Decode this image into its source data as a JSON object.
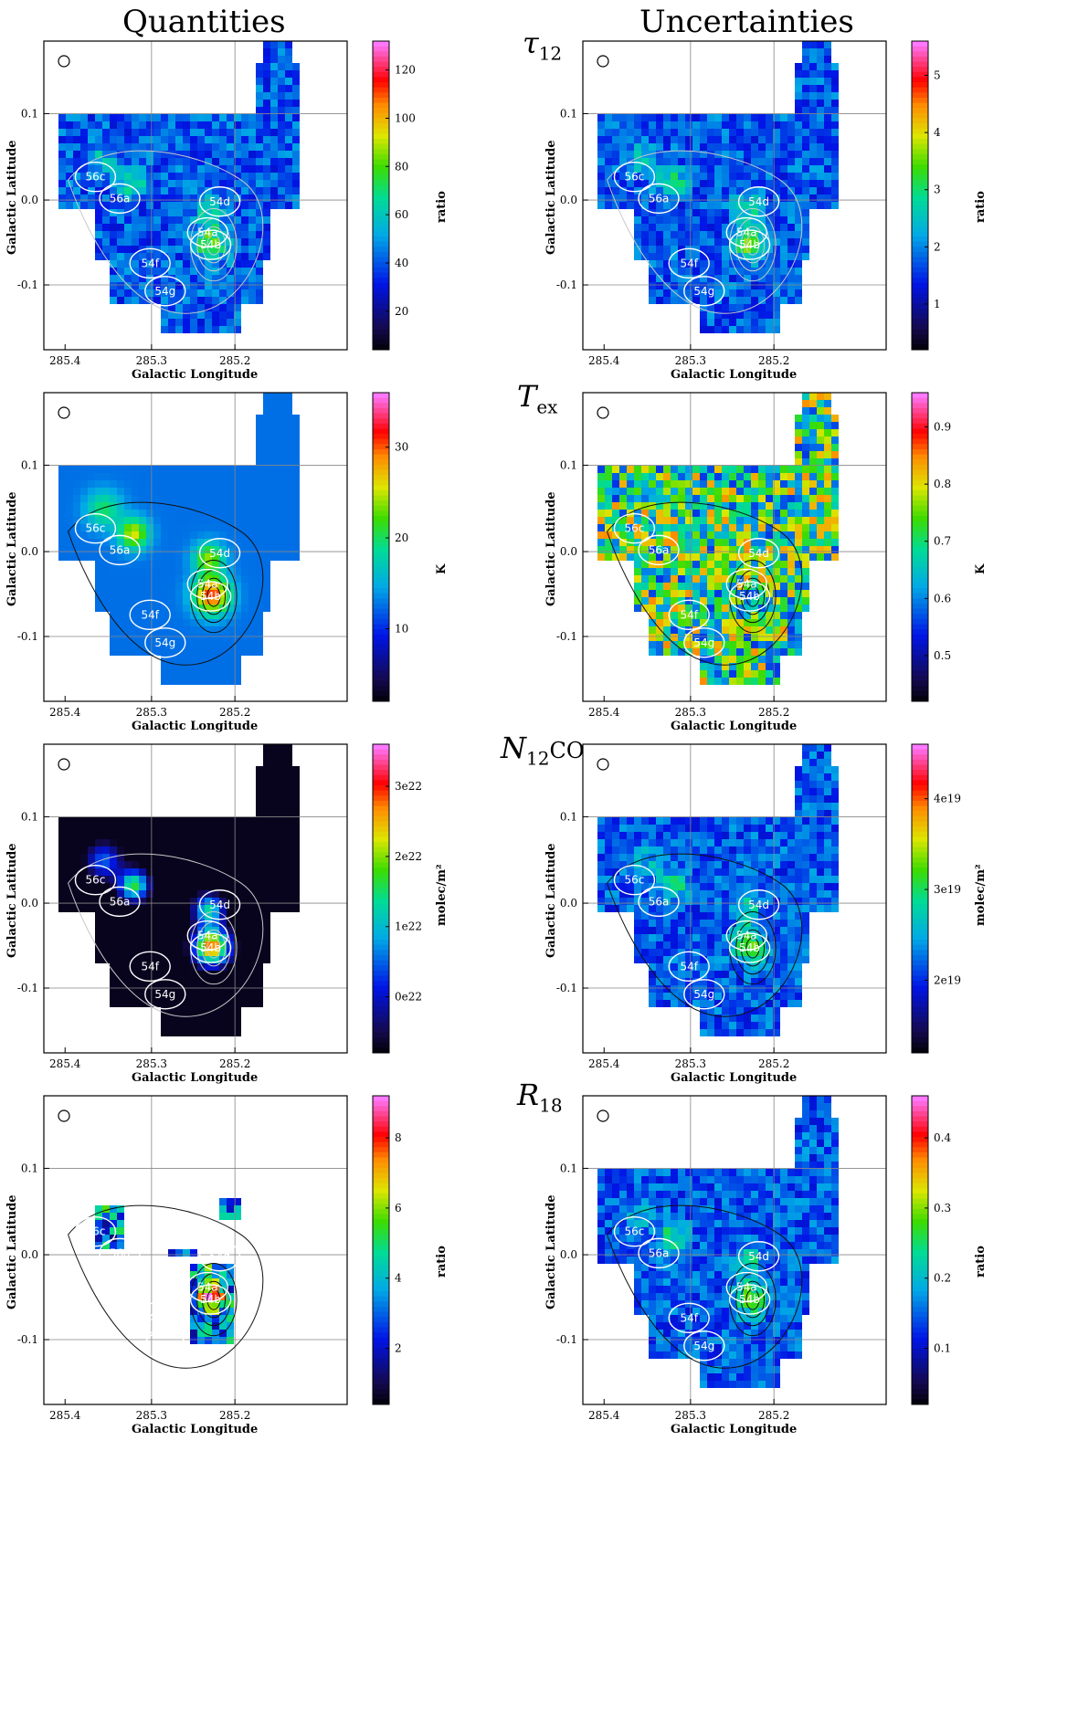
{
  "headers": {
    "left": "Quantities",
    "right": "Uncertainties"
  },
  "rows": [
    {
      "label_main": "τ",
      "label_sub": "12",
      "label_sup": ""
    },
    {
      "label_main": "T",
      "label_sub": "ex",
      "label_sup": ""
    },
    {
      "label_main": "N",
      "label_sub": "",
      "label_sup": "12",
      "label_tail": "CO"
    },
    {
      "label_main": "R",
      "label_sub": "18",
      "label_sup": ""
    }
  ],
  "axes": {
    "xlabel": "Galactic Longitude",
    "ylabel": "Galactic Latitude",
    "xticks": [
      "285.4",
      "285.3",
      "285.2"
    ],
    "yticks": [
      "0.1",
      "0.0",
      "-0.1"
    ]
  },
  "sources": [
    "56c",
    "56a",
    "54d",
    "54a",
    "54b",
    "54f",
    "54g"
  ],
  "panels": [
    {
      "id": "tau-quantity",
      "colorbar_title": "ratio",
      "cb_ticks": [
        "120",
        "100",
        "80",
        "60",
        "40",
        "20"
      ],
      "contour": "#c8c8c8",
      "style": "blue"
    },
    {
      "id": "tau-uncertainty",
      "colorbar_title": "ratio",
      "cb_ticks": [
        "5",
        "4",
        "3",
        "2",
        "1"
      ],
      "contour": "#c8c8c8",
      "style": "blue"
    },
    {
      "id": "tex-quantity",
      "colorbar_title": "K",
      "cb_ticks": [
        "30",
        "20",
        "10"
      ],
      "contour": "#111111",
      "style": "smooth"
    },
    {
      "id": "tex-uncertainty",
      "colorbar_title": "K",
      "cb_ticks": [
        "0.9",
        "0.8",
        "0.7",
        "0.6",
        "0.5"
      ],
      "contour": "#111111",
      "style": "noisy"
    },
    {
      "id": "nco-quantity",
      "colorbar_title": "molec/m²",
      "cb_ticks": [
        "3e22",
        "2e22",
        "1e22",
        "0e22"
      ],
      "contour": "#c8c8c8",
      "style": "dark"
    },
    {
      "id": "nco-uncertainty",
      "colorbar_title": "molec/m²",
      "cb_ticks": [
        "4e19",
        "3e19",
        "2e19"
      ],
      "contour": "#111111",
      "style": "blue"
    },
    {
      "id": "r18-quantity",
      "colorbar_title": "ratio",
      "cb_ticks": [
        "8",
        "6",
        "4",
        "2"
      ],
      "contour": "#111111",
      "style": "sparse"
    },
    {
      "id": "r18-uncertainty",
      "colorbar_title": "ratio",
      "cb_ticks": [
        "0.4",
        "0.3",
        "0.2",
        "0.1"
      ],
      "contour": "#111111",
      "style": "blue"
    }
  ]
}
